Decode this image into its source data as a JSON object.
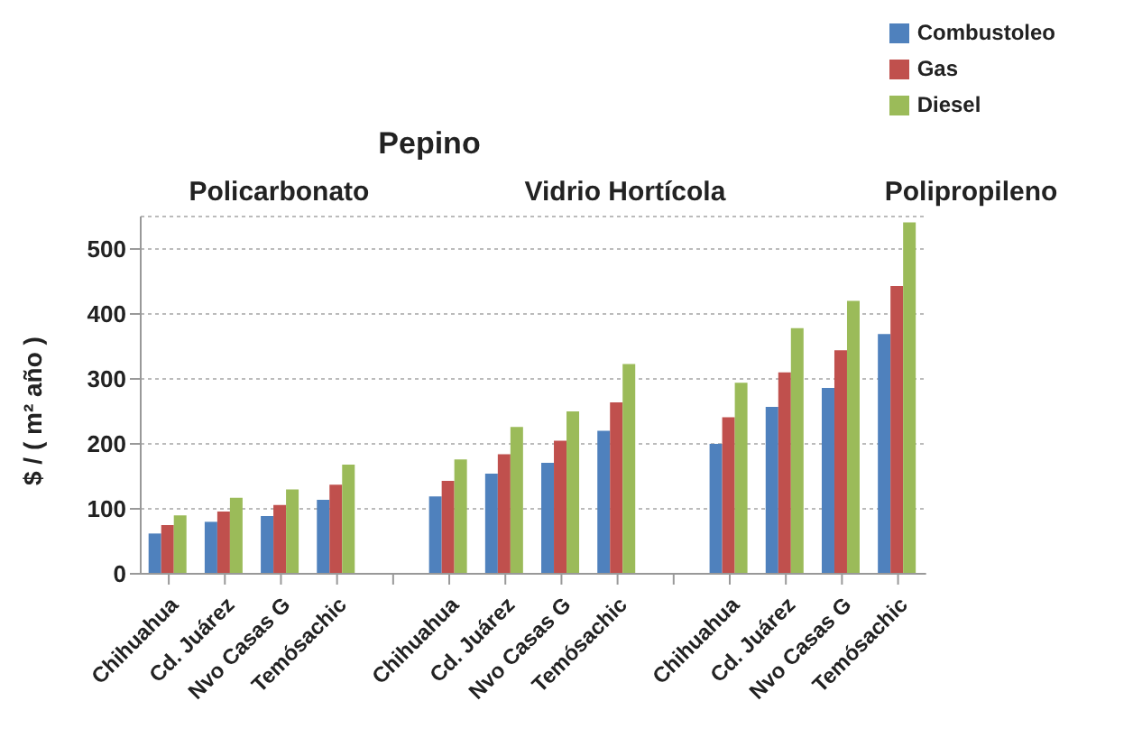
{
  "chart_data": {
    "type": "bar",
    "title": "Pepino",
    "ylabel": "$ / ( m² año )",
    "categories": [
      "Chihuahua",
      "Cd. Juárez",
      "Nvo Casas G",
      "Temósachic",
      null,
      "Chihuahua",
      "Cd. Juárez",
      "Nvo Casas G",
      "Temósachic",
      null,
      "Chihuahua",
      "Cd. Juárez",
      "Nvo Casas G",
      "Temósachic"
    ],
    "series": [
      {
        "name": "Combustoleo",
        "color": "#4f81bd",
        "values": [
          62,
          80,
          89,
          114,
          null,
          119,
          154,
          171,
          220,
          null,
          200,
          257,
          286,
          369
        ]
      },
      {
        "name": "Gas",
        "color": "#c0504d",
        "values": [
          75,
          96,
          106,
          137,
          null,
          143,
          184,
          205,
          264,
          null,
          241,
          310,
          344,
          443
        ]
      },
      {
        "name": "Diesel",
        "color": "#9bbb59",
        "values": [
          90,
          117,
          130,
          168,
          null,
          176,
          226,
          250,
          323,
          null,
          294,
          378,
          420,
          541
        ]
      }
    ],
    "annotations": [
      "Policarbonato",
      "Vidrio Hortícola",
      "Polipropileno"
    ],
    "ylim": [
      0,
      550
    ],
    "yticks": [
      0,
      100,
      200,
      300,
      400,
      500
    ],
    "grid": "y",
    "legend": "top right"
  }
}
